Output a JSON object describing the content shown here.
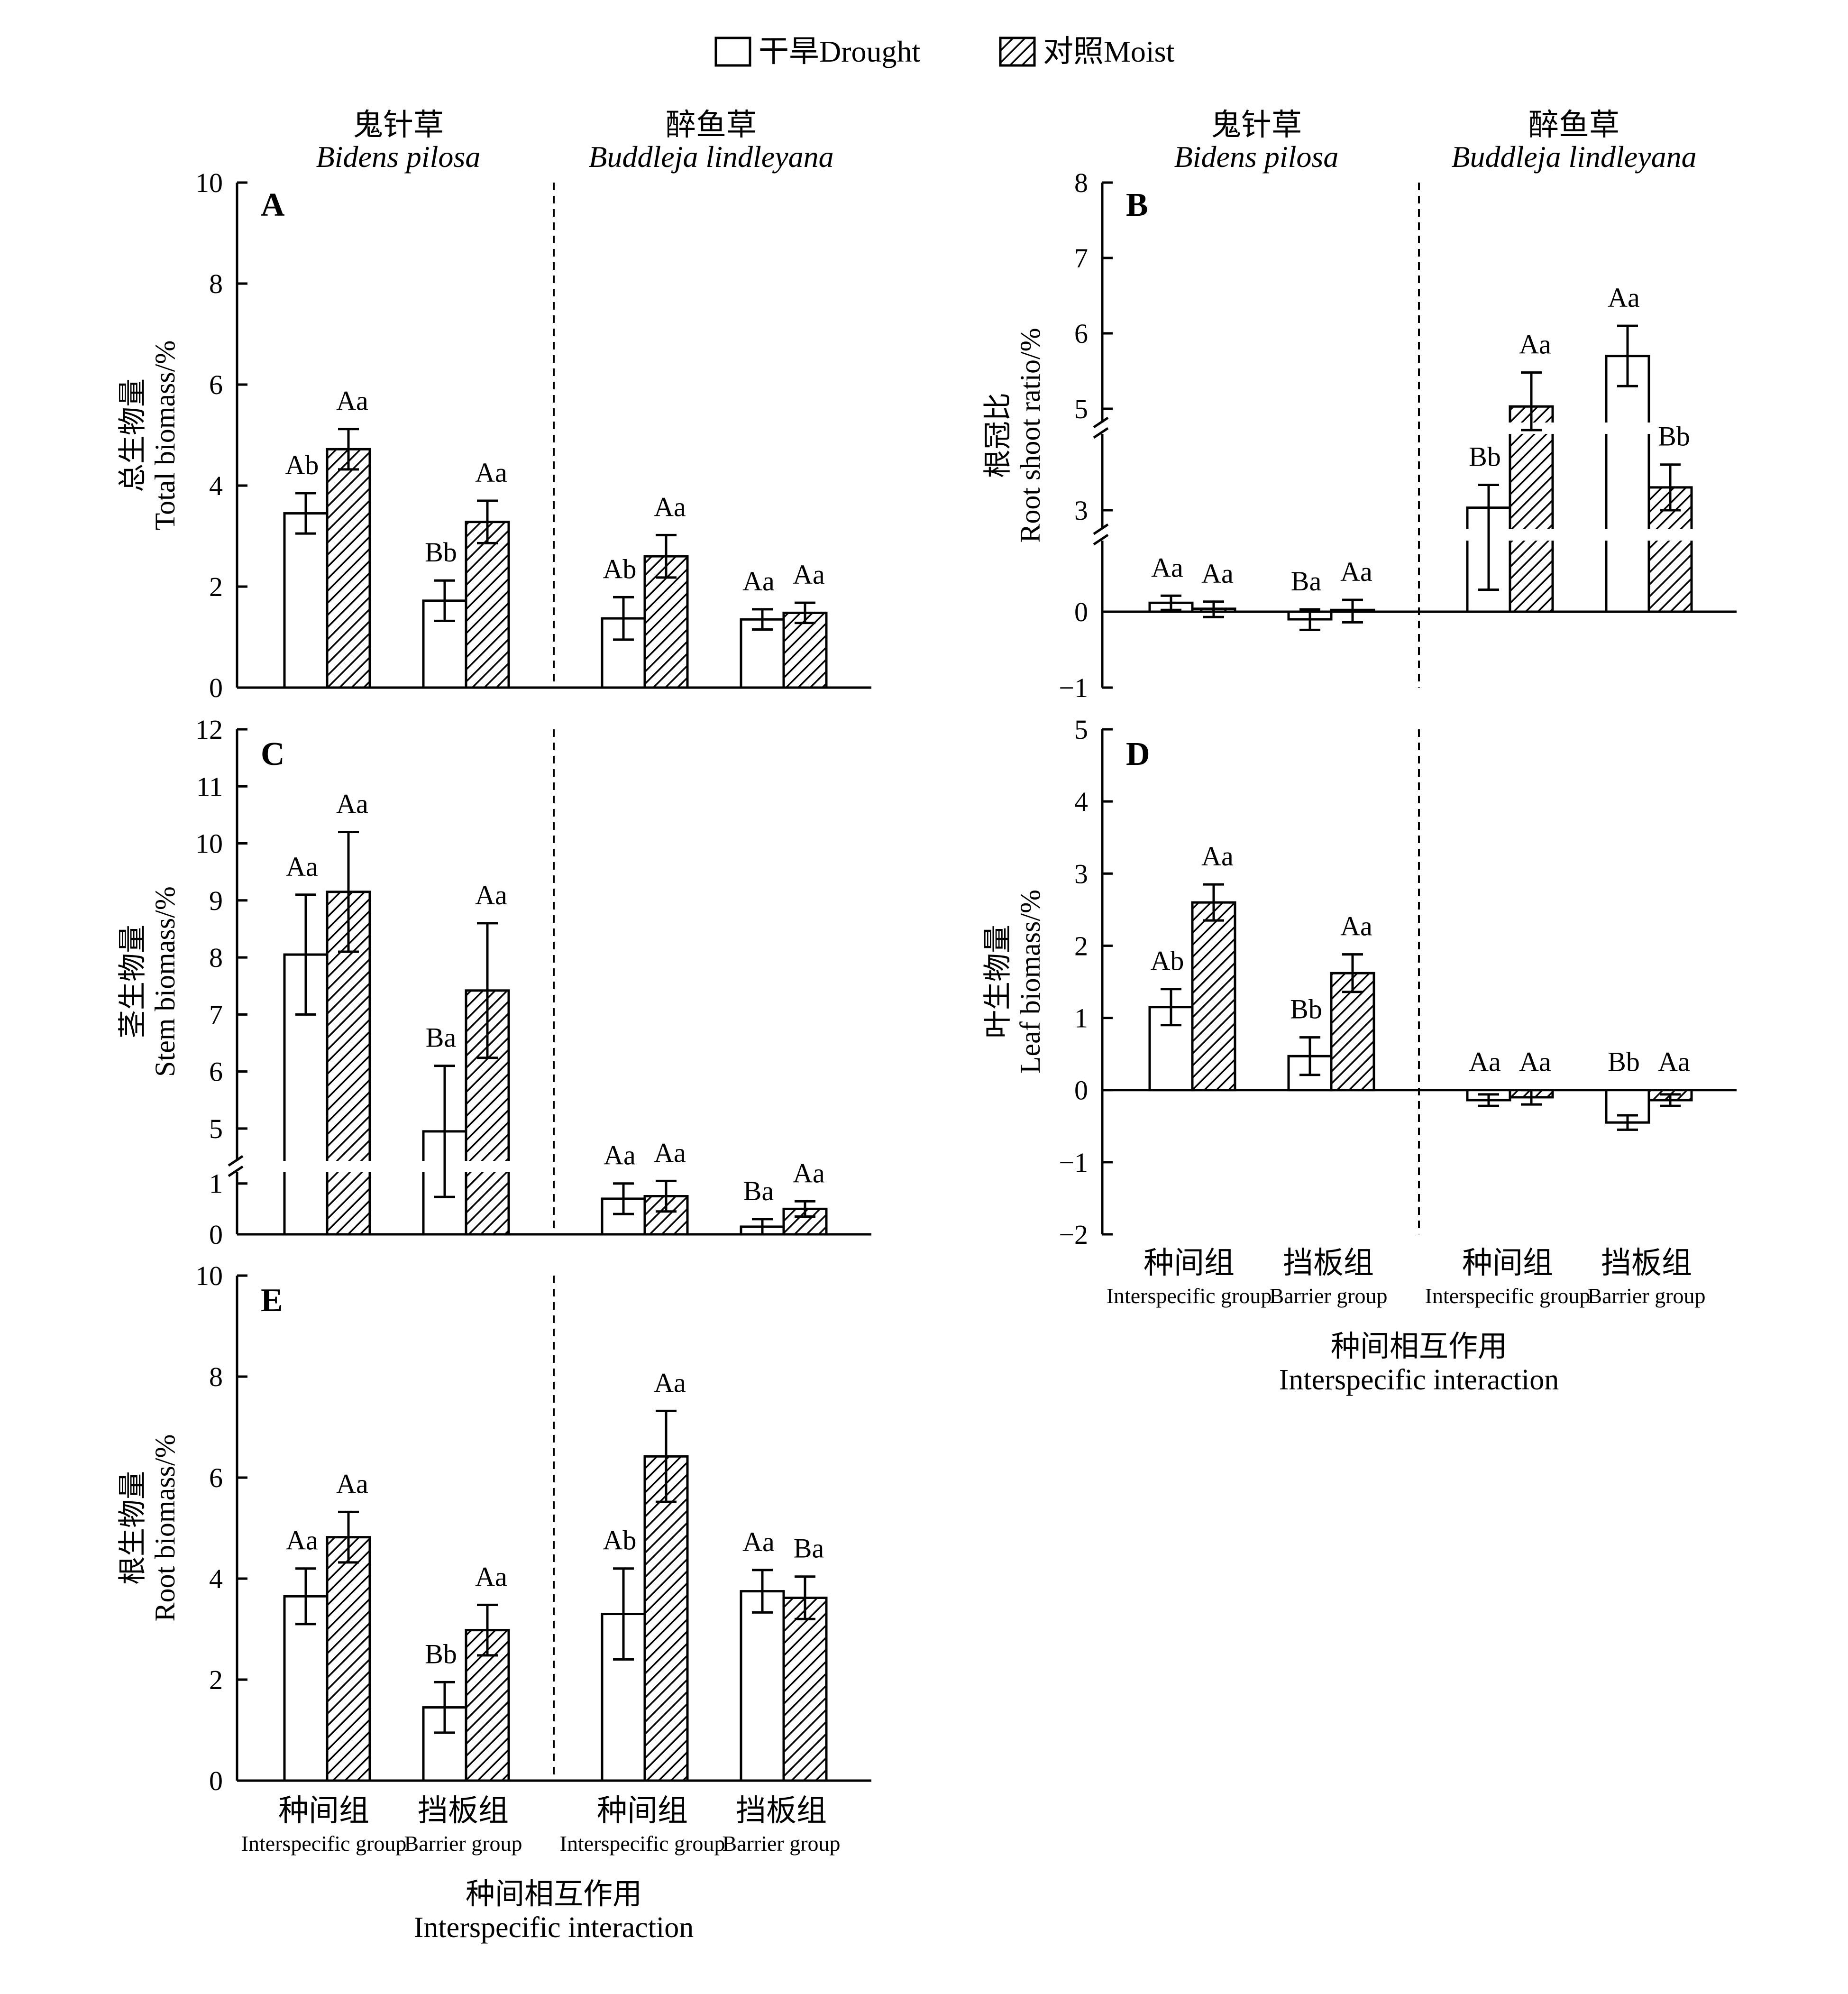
{
  "legend": [
    {
      "label": "干旱Drought",
      "pattern": "open"
    },
    {
      "label": "对照Moist",
      "pattern": "hatched"
    }
  ],
  "species": [
    {
      "cn": "鬼针草",
      "latin": "Bidens pilosa"
    },
    {
      "cn": "醉鱼草",
      "latin": "Buddleja lindleyana"
    }
  ],
  "categories": [
    {
      "cn": "种间组",
      "en": "Interspecific group"
    },
    {
      "cn": "挡板组",
      "en": "Barrier group"
    },
    {
      "cn": "种间组",
      "en": "Interspecific group"
    },
    {
      "cn": "挡板组",
      "en": "Barrier group"
    }
  ],
  "x_title": {
    "cn": "种间相互作用",
    "en": "Interspecific interaction"
  },
  "chart_data": [
    {
      "panel": "A",
      "type": "bar",
      "ylabel_cn": "总生物量",
      "ylabel_en": "Total biomass/%",
      "ylim": [
        0,
        10
      ],
      "yticks": [
        "0",
        "2",
        "4",
        "6",
        "8",
        "10"
      ],
      "series": [
        {
          "name": "干旱Drought",
          "values": [
            3.45,
            1.72,
            1.37,
            1.35
          ],
          "errors": [
            0.4,
            0.4,
            0.42,
            0.2
          ],
          "letters": [
            "Ab",
            "Bb",
            "Ab",
            "Aa"
          ]
        },
        {
          "name": "对照Moist",
          "values": [
            4.72,
            3.28,
            2.6,
            1.48
          ],
          "errors": [
            0.4,
            0.42,
            0.42,
            0.2
          ],
          "letters": [
            "Aa",
            "Aa",
            "Aa",
            "Aa"
          ]
        }
      ]
    },
    {
      "panel": "B",
      "type": "bar",
      "ylabel_cn": "根冠比",
      "ylabel_en": "Root shoot ratio/%",
      "ylim": [
        -1,
        8
      ],
      "yticks": [
        "−1",
        "0",
        "3",
        "5",
        "6",
        "7",
        "8"
      ],
      "axis_break": "broken y-axis",
      "series": [
        {
          "name": "干旱Drought",
          "values": [
            0.15,
            -0.1,
            3.05,
            5.7
          ],
          "errors": [
            0.12,
            0.14,
            0.45,
            0.4
          ],
          "letters": [
            "Aa",
            "Ba",
            "Bb",
            "Aa"
          ]
        },
        {
          "name": "对照Moist",
          "values": [
            0.05,
            0.03,
            5.03,
            3.45
          ],
          "errors": [
            0.12,
            0.17,
            0.45,
            0.45
          ],
          "letters": [
            "Aa",
            "Aa",
            "Aa",
            "Bb"
          ]
        }
      ]
    },
    {
      "panel": "C",
      "type": "bar",
      "ylabel_cn": "茎生物量",
      "ylabel_en": "Stem biomass/%",
      "ylim": [
        0,
        12
      ],
      "yticks": [
        "0",
        "1",
        "5",
        "6",
        "7",
        "8",
        "9",
        "10",
        "11",
        "12"
      ],
      "axis_break": "broken y-axis",
      "series": [
        {
          "name": "干旱Drought",
          "values": [
            8.05,
            4.95,
            0.7,
            0.15
          ],
          "errors": [
            1.05,
            1.15,
            0.3,
            0.15
          ],
          "letters": [
            "Aa",
            "Ba",
            "Aa",
            "Ba"
          ]
        },
        {
          "name": "对照Moist",
          "values": [
            9.15,
            7.42,
            0.75,
            0.5
          ],
          "errors": [
            1.05,
            1.18,
            0.3,
            0.15
          ],
          "letters": [
            "Aa",
            "Aa",
            "Aa",
            "Aa"
          ]
        }
      ]
    },
    {
      "panel": "D",
      "type": "bar",
      "ylabel_cn": "叶生物量",
      "ylabel_en": "Leaf biomass/%",
      "ylim": [
        -2,
        5
      ],
      "yticks": [
        "−2",
        "−1",
        "0",
        "1",
        "2",
        "3",
        "4",
        "5"
      ],
      "series": [
        {
          "name": "干旱Drought",
          "values": [
            1.15,
            0.47,
            -0.14,
            -0.45
          ],
          "errors": [
            0.25,
            0.26,
            0.08,
            0.1
          ],
          "letters": [
            "Ab",
            "Bb",
            "Aa",
            "Bb"
          ]
        },
        {
          "name": "对照Moist",
          "values": [
            2.6,
            1.62,
            -0.1,
            -0.14
          ],
          "errors": [
            0.25,
            0.26,
            0.1,
            0.08
          ],
          "letters": [
            "Aa",
            "Aa",
            "Aa",
            "Aa"
          ]
        }
      ]
    },
    {
      "panel": "E",
      "type": "bar",
      "ylabel_cn": "根生物量",
      "ylabel_en": "Root biomass/%",
      "ylim": [
        0,
        10
      ],
      "yticks": [
        "0",
        "2",
        "4",
        "6",
        "8",
        "10"
      ],
      "series": [
        {
          "name": "干旱Drought",
          "values": [
            3.65,
            1.45,
            3.3,
            3.75
          ],
          "errors": [
            0.55,
            0.5,
            0.9,
            0.42
          ],
          "letters": [
            "Aa",
            "Bb",
            "Ab",
            "Aa"
          ]
        },
        {
          "name": "对照Moist",
          "values": [
            4.82,
            2.98,
            6.42,
            3.62
          ],
          "errors": [
            0.5,
            0.5,
            0.9,
            0.42
          ],
          "letters": [
            "Aa",
            "Aa",
            "Aa",
            "Ba"
          ]
        }
      ]
    }
  ]
}
